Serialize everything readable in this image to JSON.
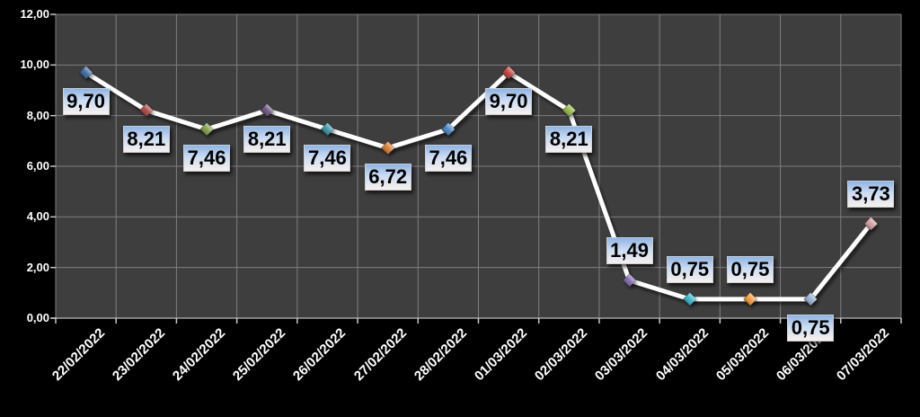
{
  "chart_data": {
    "type": "line",
    "title": "",
    "xlabel": "",
    "ylabel": "",
    "legend": "none",
    "grid": true,
    "categories": [
      "22/02/2022",
      "23/02/2022",
      "24/02/2022",
      "25/02/2022",
      "26/02/2022",
      "27/02/2022",
      "28/02/2022",
      "01/03/2022",
      "02/03/2022",
      "03/03/2022",
      "04/03/2022",
      "05/03/2022",
      "06/03/2022",
      "07/03/2022"
    ],
    "values": [
      9.7,
      8.21,
      7.46,
      8.21,
      7.46,
      6.72,
      7.46,
      9.7,
      8.21,
      1.49,
      0.75,
      0.75,
      0.75,
      3.73
    ],
    "point_labels": [
      "9,70",
      "8,21",
      "7,46",
      "8,21",
      "7,46",
      "6,72",
      "7,46",
      "9,70",
      "8,21",
      "1,49",
      "0,75",
      "0,75",
      "0,75",
      "3,73"
    ],
    "label_positions": [
      "below",
      "below",
      "below",
      "below",
      "below",
      "below",
      "below",
      "below",
      "below",
      "above",
      "above",
      "above",
      "below",
      "above"
    ],
    "marker_colors": [
      "#31609A",
      "#A33B38",
      "#769739",
      "#5F4B78",
      "#2F8A9E",
      "#D4731F",
      "#3C7CC0",
      "#C0352E",
      "#8CB03C",
      "#7A60A8",
      "#2BAEC2",
      "#F0922F",
      "#8FA8CC",
      "#CB9598"
    ],
    "ylim": [
      0,
      12
    ],
    "y_axis": {
      "tick_values": [
        12,
        10,
        8,
        6,
        4,
        2,
        0
      ],
      "tick_labels": [
        "12,00",
        "10,00",
        "8,00",
        "6,00",
        "4,00",
        "2,00",
        "0,00"
      ]
    },
    "colors": {
      "background": "#000000",
      "plot_bg": "#3E3E3E",
      "gridline": "#7F7F7F",
      "axis_line": "#A0A0A0",
      "tick": "#C8C8C8",
      "line": "#FFFFFF",
      "axis_text": "#FFFFFF",
      "label_text": "#000000",
      "label_bg_top": "#8FB4E4",
      "label_bg_mid": "#CADCF3",
      "label_bg_bottom": "#F7F0EE",
      "label_border": "#CFCFCF"
    }
  }
}
